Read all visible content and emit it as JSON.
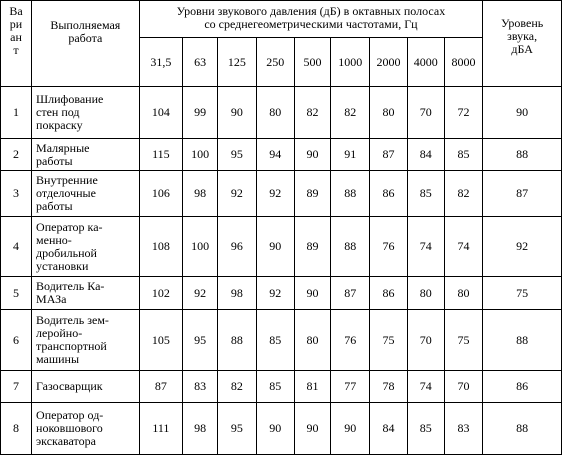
{
  "headers": {
    "variant_lines": [
      "Ва",
      "ри",
      "ан",
      "т"
    ],
    "work_lines": [
      "Выполняемая",
      "работа"
    ],
    "levels_lines": [
      "Уровни звукового давления (дБ) в октавных полосах",
      "со среднегеометрическими частотами, Гц"
    ],
    "sound_lines": [
      "Уровень",
      "звука,",
      "дБА"
    ],
    "frequencies": [
      "31,5",
      "63",
      "125",
      "250",
      "500",
      "1000",
      "2000",
      "4000",
      "8000"
    ]
  },
  "rows": [
    {
      "variant": "1",
      "work_lines": [
        "Шлифование",
        "стен под",
        "покраску"
      ],
      "values": [
        "104",
        "99",
        "90",
        "80",
        "82",
        "82",
        "80",
        "70",
        "72"
      ],
      "level": "90"
    },
    {
      "variant": "2",
      "work_lines": [
        "Малярные",
        "работы"
      ],
      "values": [
        "115",
        "100",
        "95",
        "94",
        "90",
        "91",
        "87",
        "84",
        "85"
      ],
      "level": "88"
    },
    {
      "variant": "3",
      "work_lines": [
        "Внутренние",
        "отделочные",
        "работы"
      ],
      "values": [
        "106",
        "98",
        "92",
        "92",
        "89",
        "88",
        "86",
        "85",
        "82"
      ],
      "level": "87"
    },
    {
      "variant": "4",
      "work_lines": [
        "Оператор ка-",
        "менно-",
        "дробильной",
        "установки"
      ],
      "values": [
        "108",
        "100",
        "96",
        "90",
        "89",
        "88",
        "76",
        "74",
        "74"
      ],
      "level": "92"
    },
    {
      "variant": "5",
      "work_lines": [
        "Водитель Ка-",
        "МАЗа"
      ],
      "values": [
        "102",
        "92",
        "98",
        "92",
        "90",
        "87",
        "86",
        "80",
        "80"
      ],
      "level": "75"
    },
    {
      "variant": "6",
      "work_lines": [
        "Водитель зем-",
        "леройно-",
        "транспортной",
        "машины"
      ],
      "values": [
        "105",
        "95",
        "88",
        "85",
        "80",
        "76",
        "75",
        "70",
        "75"
      ],
      "level": "88"
    },
    {
      "variant": "7",
      "work_lines": [
        "Газосварщик"
      ],
      "values": [
        "87",
        "83",
        "82",
        "85",
        "81",
        "77",
        "78",
        "74",
        "70"
      ],
      "level": "86"
    },
    {
      "variant": "8",
      "work_lines": [
        "Оператор од-",
        "ноковшового",
        "экскаватора"
      ],
      "values": [
        "111",
        "98",
        "95",
        "90",
        "90",
        "90",
        "84",
        "85",
        "83"
      ],
      "level": "88"
    }
  ]
}
